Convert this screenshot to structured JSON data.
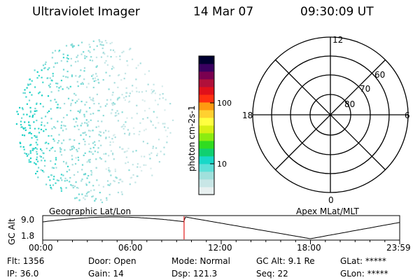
{
  "header": {
    "instrument": "Ultraviolet Imager",
    "date": "14 Mar 07",
    "time": "09:30:09 UT"
  },
  "colorbar": {
    "label": "photon cm-2s-1",
    "ticks": [
      "100",
      "10"
    ],
    "colors": [
      "#e8f0f0",
      "#c8e6e6",
      "#a0e0dc",
      "#5ee0d8",
      "#18d8c8",
      "#10d070",
      "#30dc20",
      "#8cec10",
      "#d8f014",
      "#ffff40",
      "#ffd030",
      "#ff9a10",
      "#ff3010",
      "#e0101a",
      "#b0103a",
      "#7a0050",
      "#3a0060",
      "#000030"
    ]
  },
  "polar_plot": {
    "mlt_labels": [
      "12",
      "18",
      "6",
      "0"
    ],
    "lat_labels": [
      "60",
      "70",
      "80"
    ]
  },
  "timeline": {
    "y_axis_label": "GC Alt",
    "y_ticks": [
      "9.0",
      "1.8"
    ],
    "left_title": "Geographic Lat/Lon",
    "right_title": "Apex MLat/MLT",
    "x_ticks": [
      "00:00",
      "06:00",
      "12:00",
      "18:00",
      "23:59"
    ],
    "current_time_fraction": 0.396
  },
  "status": {
    "flt": "Flt: 1356",
    "ip": "IP: 36.0",
    "door": "Door: Open",
    "gain": "Gain: 14",
    "mode": "Mode: Normal",
    "dsp": "Dsp: 121.3",
    "gc_alt": "GC Alt: 9.1 Re",
    "seq": "Seq: 22",
    "glat": "GLat: *****",
    "glon": "GLon: *****"
  }
}
